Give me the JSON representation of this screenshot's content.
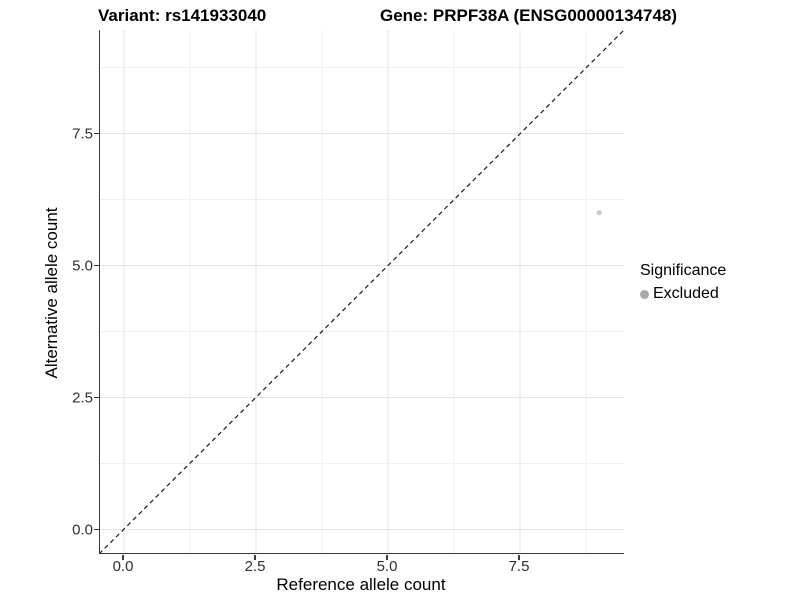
{
  "header": {
    "variant_title": "Variant: rs141933040",
    "gene_title": "Gene: PRPF38A (ENSG00000134748)"
  },
  "chart_data": {
    "type": "scatter",
    "title_left": "Variant: rs141933040",
    "title_right": "Gene: PRPF38A (ENSG00000134748)",
    "xlabel": "Reference allele count",
    "ylabel": "Alternative allele count",
    "xlim": [
      -0.45,
      9.45
    ],
    "ylim": [
      -0.45,
      9.45
    ],
    "x_ticks": [
      {
        "value": 0,
        "label": "0.0"
      },
      {
        "value": 2.5,
        "label": "2.5"
      },
      {
        "value": 5,
        "label": "5.0"
      },
      {
        "value": 7.5,
        "label": "7.5"
      }
    ],
    "y_ticks": [
      {
        "value": 0,
        "label": "0.0"
      },
      {
        "value": 2.5,
        "label": "2.5"
      },
      {
        "value": 5,
        "label": "5.0"
      },
      {
        "value": 7.5,
        "label": "7.5"
      }
    ],
    "minor_tick_values": [
      1.25,
      3.75,
      6.25,
      8.75
    ],
    "grid": "major and minor gridlines on white background",
    "points": [
      {
        "x": 9,
        "y": 6,
        "series": "Excluded"
      }
    ],
    "reference_line": {
      "equation": "y = x",
      "style": "dashed",
      "color": "#1a1a1a"
    },
    "legend": {
      "position": "right",
      "title": "Significance",
      "entries": [
        {
          "label": "Excluded",
          "color": "#a8a8a8"
        }
      ]
    }
  },
  "colors": {
    "background": "#ffffff",
    "point": "#c9c9c9",
    "legend_dot": "#a8a8a8",
    "grid_major": "#e4e4e4",
    "grid_minor": "#f0f0f0",
    "axis_line": "#3a3a3a",
    "tick_label": "#303030",
    "dashed_line": "#1a1a1a"
  }
}
